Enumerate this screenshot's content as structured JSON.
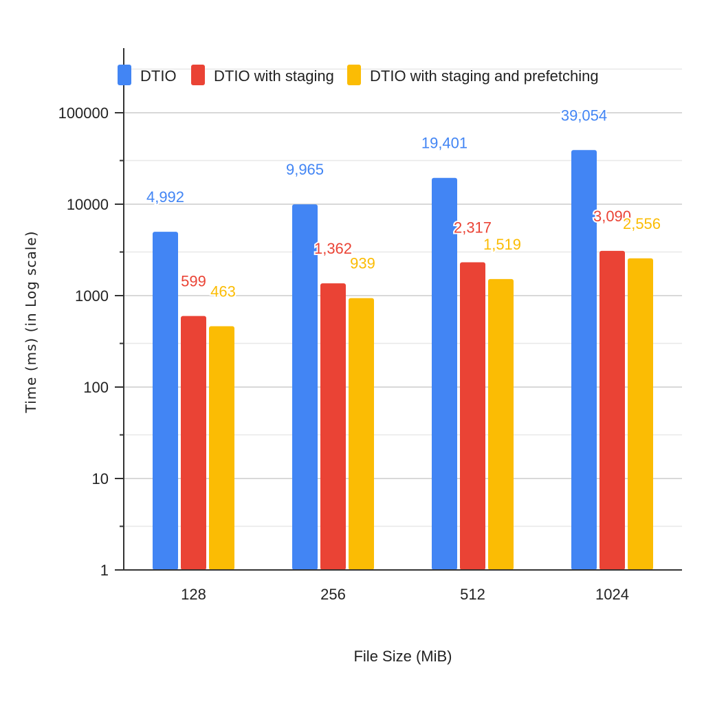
{
  "chart_data": {
    "type": "bar",
    "title": "",
    "xlabel": "File Size (MiB)",
    "ylabel": "Time (ms) (in Log scale)",
    "yscale": "log",
    "ylim": [
      1,
      100000
    ],
    "yticks": [
      "1",
      "10",
      "100",
      "1000",
      "10000",
      "100000"
    ],
    "ytick_values": [
      1,
      10,
      100,
      1000,
      10000,
      100000
    ],
    "categories": [
      "128",
      "256",
      "512",
      "1024"
    ],
    "grid": true,
    "legend_position": "top-left",
    "series": [
      {
        "name": "DTIO",
        "color": "#4285F4",
        "values": [
          4992,
          9965,
          19401,
          39054
        ],
        "labels": [
          "4,992",
          "9,965",
          "19,401",
          "39,054"
        ]
      },
      {
        "name": "DTIO with staging",
        "color": "#EA4335",
        "values": [
          599,
          1362,
          2317,
          3090
        ],
        "labels": [
          "599",
          "1,362",
          "2,317",
          "3,090"
        ]
      },
      {
        "name": "DTIO with staging and prefetching",
        "color": "#FBBC04",
        "values": [
          463,
          939,
          1519,
          2556
        ],
        "labels": [
          "463",
          "939",
          "1,519",
          "2,556"
        ]
      }
    ]
  }
}
